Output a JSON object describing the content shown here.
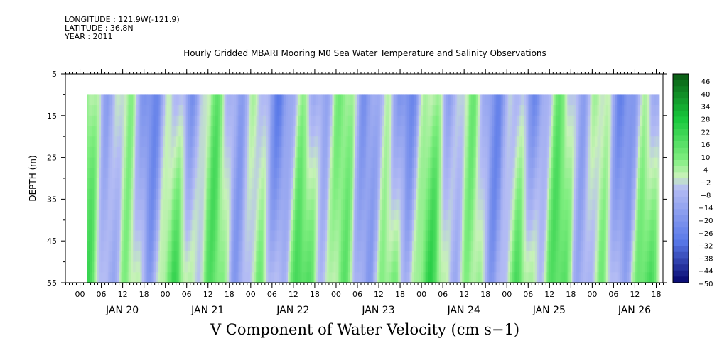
{
  "header": {
    "longitude": "LONGITUDE : 121.9W(-121.9)",
    "latitude": "LATITUDE : 36.8N",
    "year": "YEAR : 2011"
  },
  "chart_data": {
    "type": "heatmap",
    "title": "Hourly Gridded MBARI Mooring M0 Sea Water Temperature and Salinity Observations",
    "subtitle": "V Component of Water Velocity (cm s−1)",
    "ylabel": "DEPTH (m)",
    "y_ticks": [
      5,
      15,
      25,
      35,
      45,
      55
    ],
    "ylim": [
      5,
      55
    ],
    "y_inverted": true,
    "x_hour_labels": [
      "00",
      "06",
      "12",
      "18",
      "00",
      "06",
      "12",
      "18",
      "00",
      "06",
      "12",
      "18",
      "00",
      "06",
      "12",
      "18",
      "00",
      "06",
      "12",
      "18",
      "00",
      "06",
      "12",
      "18",
      "00",
      "06",
      "12",
      "18"
    ],
    "x_day_labels": [
      "JAN 20",
      "JAN 21",
      "JAN 22",
      "JAN 23",
      "JAN 24",
      "JAN 25",
      "JAN 26"
    ],
    "x_start_hour": -4,
    "x_end_hour": 164,
    "data_start_hour": 2,
    "data_end_hour": 163,
    "data_min_depth": 10,
    "data_max_depth": 55,
    "colorbar_labels": [
      "46",
      "40",
      "34",
      "28",
      "22",
      "16",
      "10",
      "4",
      "−2",
      "−8",
      "−14",
      "−20",
      "−26",
      "−32",
      "−38",
      "−44",
      "−50"
    ],
    "colorbar_range": [
      -50,
      52
    ],
    "colors": {
      "positive_dark": "#0a5a14",
      "positive_mid": "#18c83c",
      "positive_light": "#80ee80",
      "zero": "#c8f2b8",
      "negative_light": "#b4bcf4",
      "negative_mid": "#5878e8",
      "negative_dark": "#06066e"
    }
  }
}
